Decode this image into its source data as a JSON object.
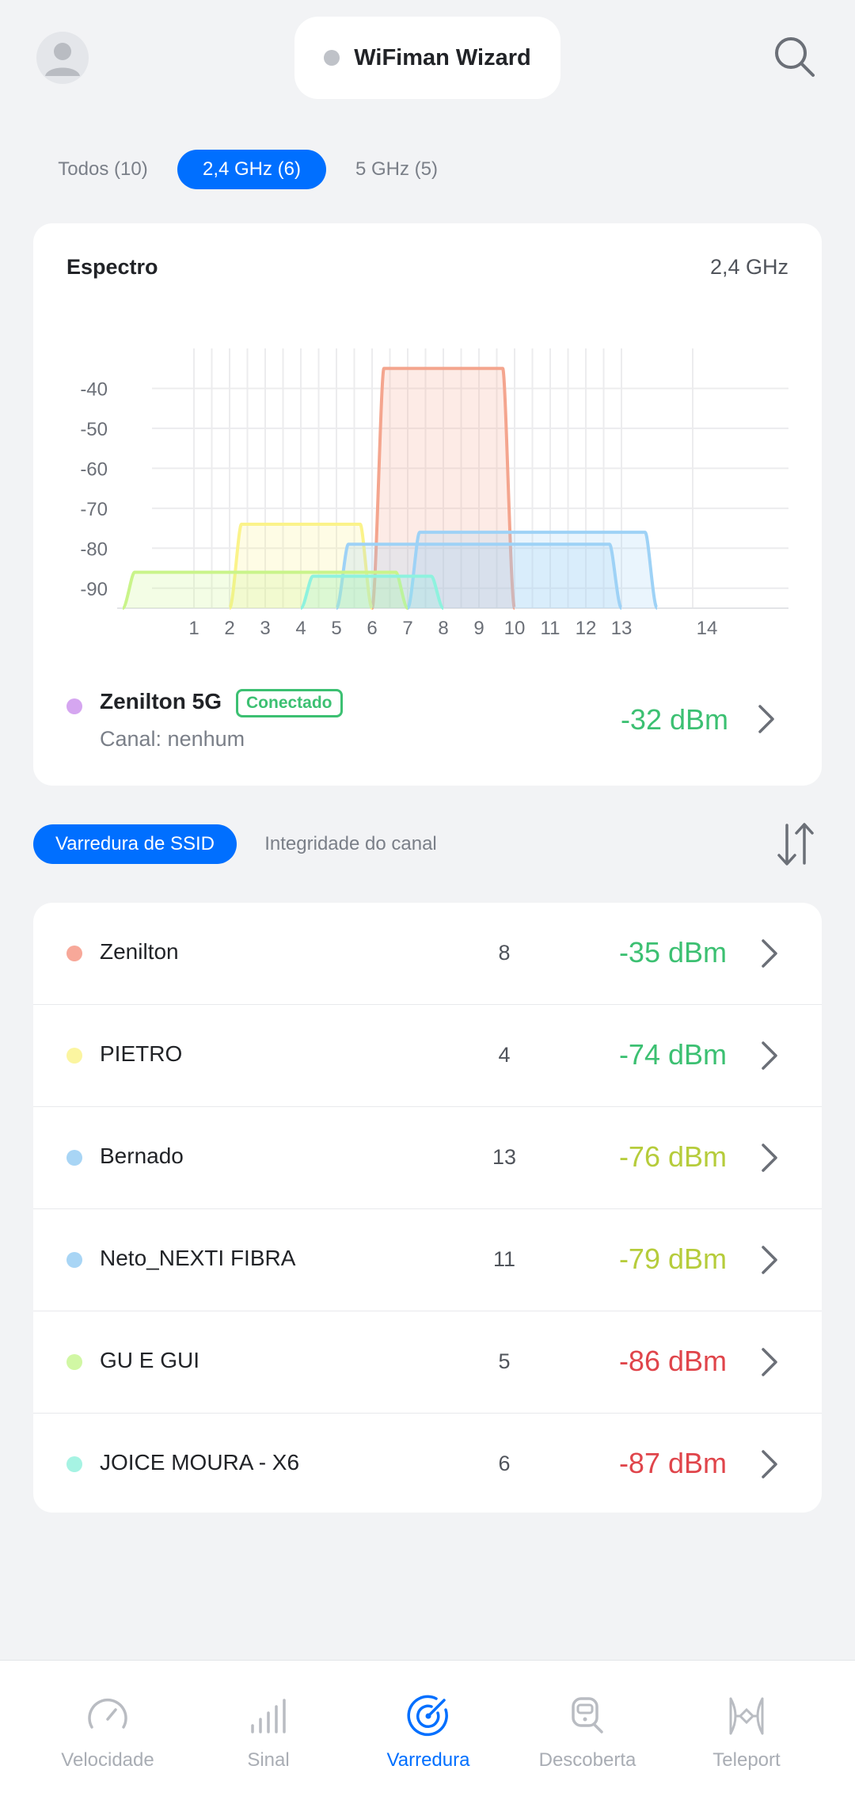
{
  "header": {
    "title": "WiFiman Wizard"
  },
  "band_tabs": [
    {
      "label": "Todos (10)",
      "active": false
    },
    {
      "label": "2,4 GHz (6)",
      "active": true
    },
    {
      "label": "5 GHz (5)",
      "active": false
    }
  ],
  "spectrum": {
    "title": "Espectro",
    "band": "2,4 GHz",
    "connected": {
      "name": "Zenilton 5G",
      "badge": "Conectado",
      "channel": "Canal: nenhum",
      "dbm": "-32 dBm",
      "color": "#d5a6f0"
    }
  },
  "chart_data": {
    "type": "area",
    "xlabel": "",
    "ylabel": "",
    "x_ticks": [
      "1",
      "2",
      "3",
      "4",
      "5",
      "6",
      "7",
      "8",
      "9",
      "10",
      "11",
      "12",
      "13",
      "14"
    ],
    "y_ticks": [
      "-40",
      "-50",
      "-60",
      "-70",
      "-80",
      "-90"
    ],
    "ylim": [
      -95,
      -30
    ],
    "grid": true,
    "series": [
      {
        "name": "Zenilton",
        "from": 6,
        "to": 10,
        "level": -35,
        "color": "#f4a58e"
      },
      {
        "name": "PIETRO",
        "from": 2,
        "to": 6,
        "level": -74,
        "color": "#fbf38a"
      },
      {
        "name": "Bernado",
        "from": 7,
        "to": 14,
        "level": -76,
        "color": "#9ed2f6"
      },
      {
        "name": "Neto_NEXTI FIBRA",
        "from": 5,
        "to": 13,
        "level": -79,
        "color": "#9ed2f6"
      },
      {
        "name": "GU E GUI",
        "from": -1,
        "to": 7,
        "level": -86,
        "color": "#c9f48a"
      },
      {
        "name": "JOICE MOURA - X6",
        "from": 4,
        "to": 8,
        "level": -87,
        "color": "#8ef2de"
      }
    ]
  },
  "ssid_tabs": [
    {
      "label": "Varredura de SSID",
      "active": true
    },
    {
      "label": "Integridade do canal",
      "active": false
    }
  ],
  "networks": [
    {
      "name": "Zenilton",
      "channel": "8",
      "dbm": "-35 dBm",
      "dot": "#f7a899",
      "dbm_color": "#3cc072"
    },
    {
      "name": "PIETRO",
      "channel": "4",
      "dbm": "-74 dBm",
      "dot": "#fbf5a0",
      "dbm_color": "#3cc072"
    },
    {
      "name": "Bernado",
      "channel": "13",
      "dbm": "-76 dBm",
      "dot": "#a8d5f5",
      "dbm_color": "#b6cc3b"
    },
    {
      "name": "Neto_NEXTI FIBRA",
      "channel": "11",
      "dbm": "-79 dBm",
      "dot": "#a8d5f5",
      "dbm_color": "#b6cc3b"
    },
    {
      "name": "GU E GUI",
      "channel": "5",
      "dbm": "-86 dBm",
      "dot": "#d1f7a4",
      "dbm_color": "#e0454b"
    },
    {
      "name": "JOICE MOURA - X6",
      "channel": "6",
      "dbm": "-87 dBm",
      "dot": "#a6f3e3",
      "dbm_color": "#e0454b"
    }
  ],
  "bottom_nav": [
    {
      "label": "Velocidade",
      "icon": "speedometer-icon",
      "active": false
    },
    {
      "label": "Sinal",
      "icon": "signal-bars-icon",
      "active": false
    },
    {
      "label": "Varredura",
      "icon": "radar-icon",
      "active": true
    },
    {
      "label": "Descoberta",
      "icon": "discovery-icon",
      "active": false
    },
    {
      "label": "Teleport",
      "icon": "teleport-icon",
      "active": false
    }
  ]
}
